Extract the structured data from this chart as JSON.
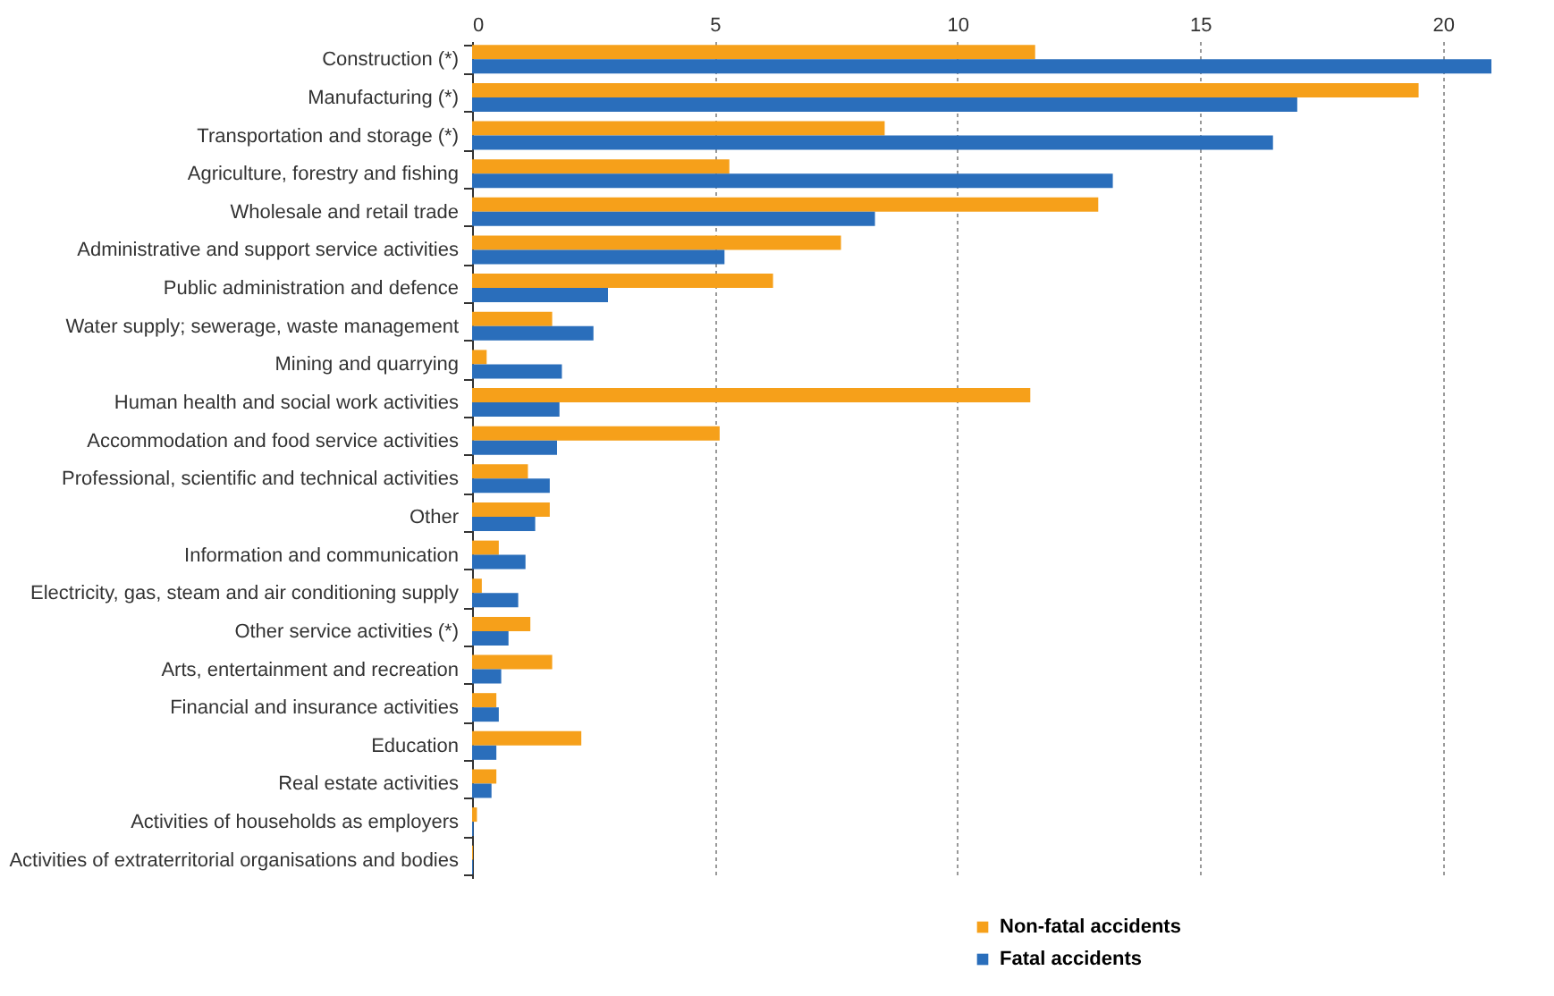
{
  "chart_data": {
    "type": "bar",
    "orientation": "horizontal",
    "categories": [
      "Construction (*)",
      "Manufacturing (*)",
      "Transportation and storage (*)",
      "Agriculture, forestry and fishing",
      "Wholesale and retail trade",
      "Administrative and support service activities",
      "Public administration and defence",
      "Water supply; sewerage, waste management",
      "Mining and quarrying",
      "Human health and social work activities",
      "Accommodation and food service activities",
      "Professional, scientific and technical activities",
      "Other",
      "Information and communication",
      "Electricity, gas, steam and air conditioning supply",
      "Other service activities (*)",
      "Arts, entertainment and recreation",
      "Financial and insurance activities",
      "Education",
      "Real estate activities",
      "Activities of households as employers",
      "Activities of extraterritorial organisations and bodies"
    ],
    "series": [
      {
        "name": "Non-fatal accidents",
        "color": "#f6a01a",
        "values": [
          11.6,
          19.5,
          8.5,
          5.3,
          12.9,
          7.6,
          6.2,
          1.65,
          0.3,
          11.5,
          5.1,
          1.15,
          1.6,
          0.55,
          0.2,
          1.2,
          1.65,
          0.5,
          2.25,
          0.5,
          0.1,
          0.02
        ]
      },
      {
        "name": "Fatal accidents",
        "color": "#2a6ebb",
        "values": [
          21,
          17.0,
          16.5,
          13.2,
          8.3,
          5.2,
          2.8,
          2.5,
          1.85,
          1.8,
          1.75,
          1.6,
          1.3,
          1.1,
          0.95,
          0.75,
          0.6,
          0.55,
          0.5,
          0.4,
          0.03,
          0.02
        ]
      }
    ],
    "xlim": [
      0,
      21
    ],
    "xticks": [
      0,
      5,
      10,
      15,
      20
    ],
    "grid": "x",
    "legend": "bottom"
  }
}
